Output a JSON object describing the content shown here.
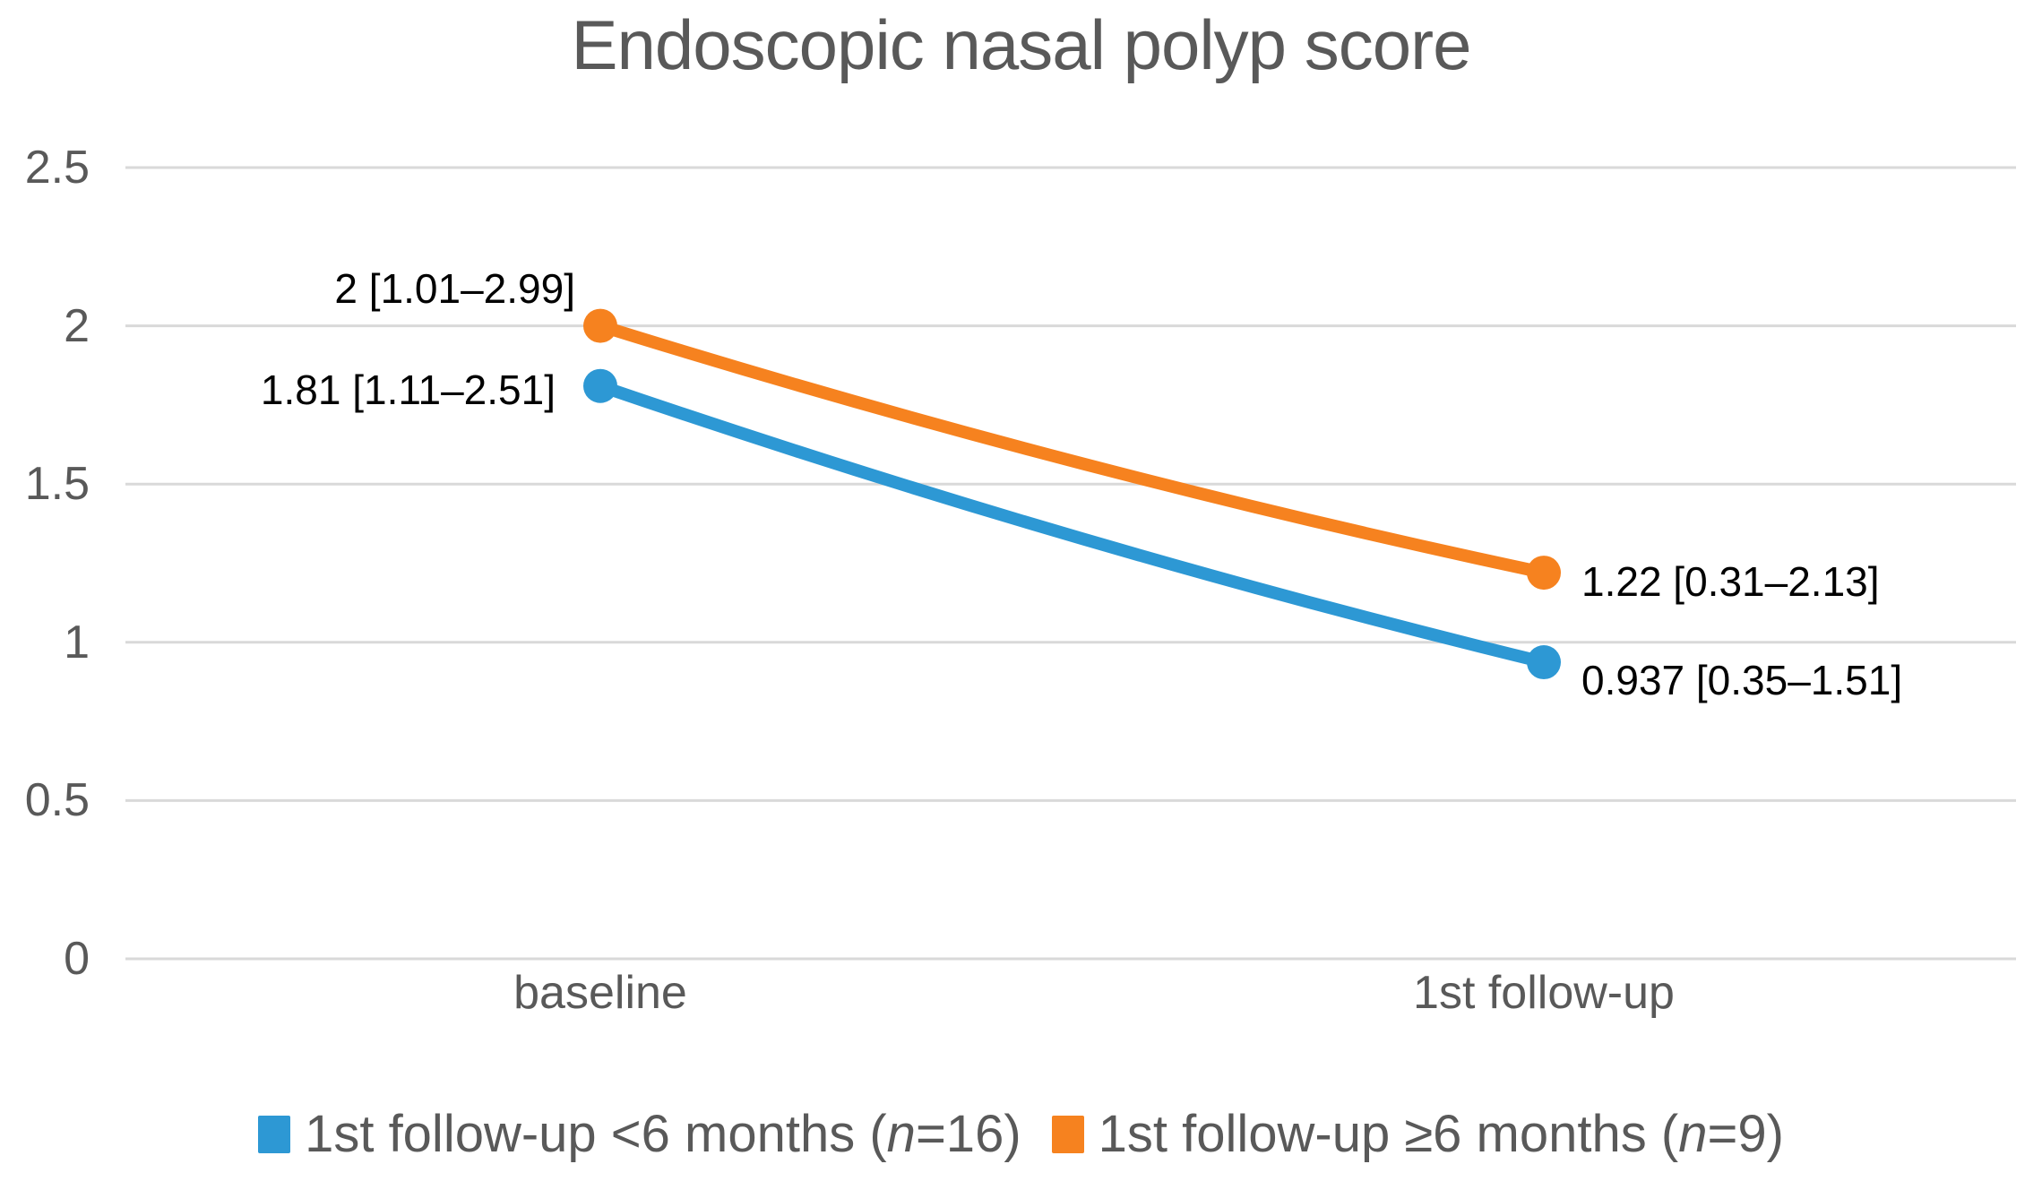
{
  "chart_data": {
    "type": "line",
    "title": "Endoscopic nasal polyp score",
    "categories": [
      "baseline",
      "1st follow-up"
    ],
    "xlabel": "",
    "ylabel": "",
    "y_axis": {
      "min": 0,
      "max": 2.5,
      "ticks": [
        {
          "value": 2.5,
          "label": "2.5"
        },
        {
          "value": 2,
          "label": "2"
        },
        {
          "value": 1.5,
          "label": "1.5"
        },
        {
          "value": 1,
          "label": "1"
        },
        {
          "value": 0.5,
          "label": "0.5"
        },
        {
          "value": 0,
          "label": "0"
        }
      ]
    },
    "grid": true,
    "legend_position": "bottom",
    "smoothed_lines": true,
    "colors": {
      "gridline": "#D9D9D9",
      "axis_text": "#595959",
      "title_text": "#595959",
      "data_label": "#000000"
    },
    "series": [
      {
        "name": "1st follow-up <6 months (n=16)",
        "color": "#2D98D4",
        "legend": {
          "prefix": "1st follow-up <6 months (",
          "n": "n",
          "suffix": "=16)"
        },
        "points": [
          {
            "category": "baseline",
            "value": 1.81,
            "label": "1.81 [1.11–2.51]",
            "label_side": "left",
            "label_dx": -50,
            "label_dy": 4
          },
          {
            "category": "1st follow-up",
            "value": 0.937,
            "label": "0.937 [0.35–1.51]",
            "label_side": "right",
            "label_dx": 42,
            "label_dy": 20
          }
        ]
      },
      {
        "name": "1st follow-up ≥6 months (n=9)",
        "color": "#F6821F",
        "legend": {
          "prefix": "1st follow-up ≥6 months (",
          "n": "n",
          "suffix": "=9)"
        },
        "points": [
          {
            "category": "baseline",
            "value": 2,
            "label": "2 [1.01–2.99]",
            "label_side": "left",
            "label_dx": -28,
            "label_dy": -42
          },
          {
            "category": "1st follow-up",
            "value": 1.22,
            "label": "1.22 [0.31–2.13]",
            "label_side": "right",
            "label_dx": 42,
            "label_dy": 10
          }
        ]
      }
    ]
  }
}
